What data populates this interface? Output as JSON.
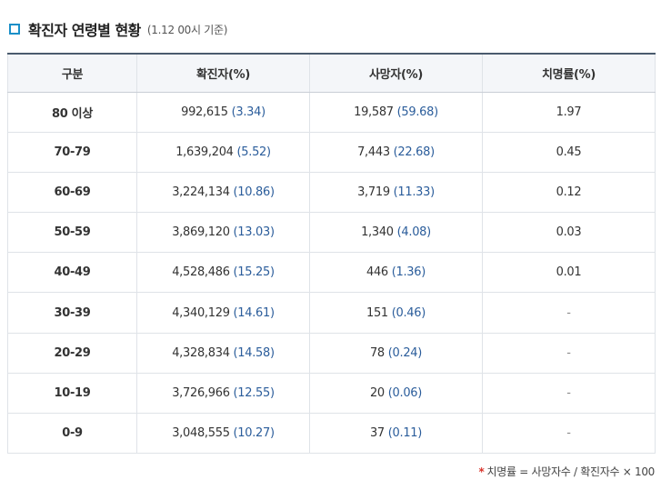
{
  "header": {
    "title": "확진자 연령별 현황",
    "subtitle": "(1.12 00시 기준)"
  },
  "table": {
    "columns": [
      "구분",
      "확진자(%)",
      "사망자(%)",
      "치명률(%)"
    ],
    "rows": [
      {
        "age": "80 이상",
        "confirmed": "992,615",
        "confirmed_pct": "(3.34)",
        "deaths": "19,587",
        "deaths_pct": "(59.68)",
        "fatality": "1.97"
      },
      {
        "age": "70-79",
        "confirmed": "1,639,204",
        "confirmed_pct": "(5.52)",
        "deaths": "7,443",
        "deaths_pct": "(22.68)",
        "fatality": "0.45"
      },
      {
        "age": "60-69",
        "confirmed": "3,224,134",
        "confirmed_pct": "(10.86)",
        "deaths": "3,719",
        "deaths_pct": "(11.33)",
        "fatality": "0.12"
      },
      {
        "age": "50-59",
        "confirmed": "3,869,120",
        "confirmed_pct": "(13.03)",
        "deaths": "1,340",
        "deaths_pct": "(4.08)",
        "fatality": "0.03"
      },
      {
        "age": "40-49",
        "confirmed": "4,528,486",
        "confirmed_pct": "(15.25)",
        "deaths": "446",
        "deaths_pct": "(1.36)",
        "fatality": "0.01"
      },
      {
        "age": "30-39",
        "confirmed": "4,340,129",
        "confirmed_pct": "(14.61)",
        "deaths": "151",
        "deaths_pct": "(0.46)",
        "fatality": "-"
      },
      {
        "age": "20-29",
        "confirmed": "4,328,834",
        "confirmed_pct": "(14.58)",
        "deaths": "78",
        "deaths_pct": "(0.24)",
        "fatality": "-"
      },
      {
        "age": "10-19",
        "confirmed": "3,726,966",
        "confirmed_pct": "(12.55)",
        "deaths": "20",
        "deaths_pct": "(0.06)",
        "fatality": "-"
      },
      {
        "age": "0-9",
        "confirmed": "3,048,555",
        "confirmed_pct": "(10.27)",
        "deaths": "37",
        "deaths_pct": "(0.11)",
        "fatality": "-"
      }
    ]
  },
  "footnote": {
    "marker": "*",
    "text": "치명률 = 사망자수 / 확진자수 × 100"
  },
  "colors": {
    "accent": "#1a8fc8",
    "value_blue": "#2b5d9b",
    "asterisk_red": "#d9342b"
  }
}
